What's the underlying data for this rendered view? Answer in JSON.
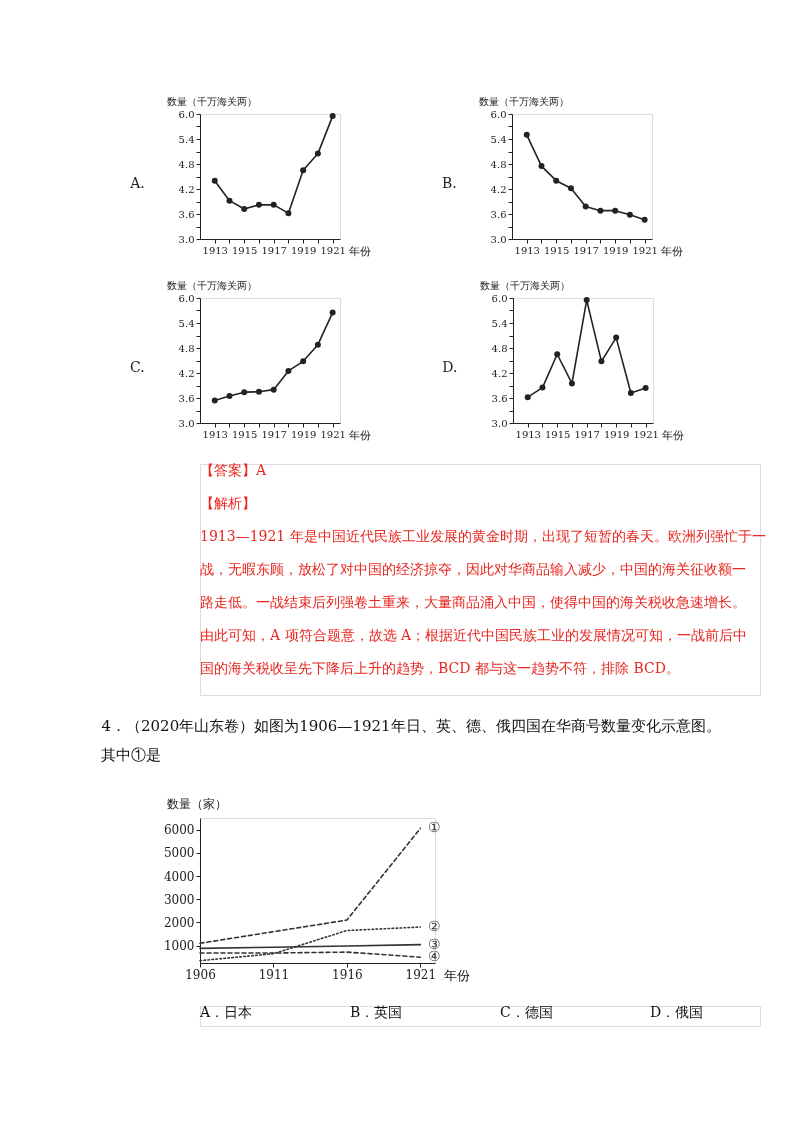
{
  "chart_data": [
    {
      "type": "line",
      "title": "A.",
      "ylabel": "数量（千万海关两）",
      "xlabel": "年份",
      "x": [
        1913,
        1914,
        1915,
        1916,
        1917,
        1918,
        1919,
        1920,
        1921
      ],
      "series": [
        {
          "color": "#222222",
          "values": [
            4.4,
            3.92,
            3.72,
            3.82,
            3.82,
            3.62,
            4.65,
            5.05,
            5.95
          ]
        }
      ],
      "xlim": [
        1912,
        1921.5
      ],
      "xticks": [
        1913,
        {
          "value": 1914,
          "label": null
        },
        1915,
        {
          "value": 1916,
          "label": null
        },
        1917,
        {
          "value": 1918,
          "label": null
        },
        1919,
        {
          "value": 1920,
          "label": null
        },
        1921
      ],
      "ylim": [
        3.0,
        6.0
      ],
      "yticks": [
        {
          "value": 3,
          "label": "3.0"
        },
        {
          "value": 3.3,
          "label": null
        },
        3.6,
        {
          "value": 3.9,
          "label": null
        },
        4.2,
        {
          "value": 4.5,
          "label": null
        },
        4.8,
        {
          "value": 5.1,
          "label": null
        },
        5.4,
        {
          "value": 5.7,
          "label": null
        },
        {
          "value": 6,
          "label": "6.0"
        }
      ],
      "marker": "circle",
      "legend": false,
      "grid": false
    },
    {
      "type": "line",
      "title": "B.",
      "ylabel": "数量（千万海关两）",
      "xlabel": "年份",
      "x": [
        1913,
        1914,
        1915,
        1916,
        1917,
        1918,
        1919,
        1920,
        1921
      ],
      "series": [
        {
          "color": "#222222",
          "values": [
            5.5,
            4.75,
            4.4,
            4.22,
            3.78,
            3.68,
            3.68,
            3.58,
            3.46
          ]
        }
      ],
      "xlim": [
        1912,
        1921.5
      ],
      "xticks": [
        1913,
        {
          "value": 1914,
          "label": null
        },
        1915,
        {
          "value": 1916,
          "label": null
        },
        1917,
        {
          "value": 1918,
          "label": null
        },
        1919,
        {
          "value": 1920,
          "label": null
        },
        1921
      ],
      "ylim": [
        3.0,
        6.0
      ],
      "yticks": [
        {
          "value": 3,
          "label": "3.0"
        },
        {
          "value": 3.3,
          "label": null
        },
        3.6,
        {
          "value": 3.9,
          "label": null
        },
        4.2,
        {
          "value": 4.5,
          "label": null
        },
        4.8,
        {
          "value": 5.1,
          "label": null
        },
        5.4,
        {
          "value": 5.7,
          "label": null
        },
        {
          "value": 6,
          "label": "6.0"
        }
      ],
      "marker": "circle",
      "legend": false,
      "grid": false
    },
    {
      "type": "line",
      "title": "C.",
      "ylabel": "数量（千万海关两）",
      "xlabel": "年份",
      "x": [
        1913,
        1914,
        1915,
        1916,
        1917,
        1918,
        1919,
        1920,
        1921
      ],
      "series": [
        {
          "color": "#222222",
          "values": [
            3.54,
            3.65,
            3.74,
            3.75,
            3.8,
            4.25,
            4.48,
            4.88,
            5.65
          ]
        }
      ],
      "xlim": [
        1912,
        1921.5
      ],
      "xticks": [
        1913,
        {
          "value": 1914,
          "label": null
        },
        1915,
        {
          "value": 1916,
          "label": null
        },
        1917,
        {
          "value": 1918,
          "label": null
        },
        1919,
        {
          "value": 1920,
          "label": null
        },
        1921
      ],
      "ylim": [
        3.0,
        6.0
      ],
      "yticks": [
        {
          "value": 3,
          "label": "3.0"
        },
        {
          "value": 3.3,
          "label": null
        },
        3.6,
        {
          "value": 3.9,
          "label": null
        },
        4.2,
        {
          "value": 4.5,
          "label": null
        },
        4.8,
        {
          "value": 5.1,
          "label": null
        },
        5.4,
        {
          "value": 5.7,
          "label": null
        },
        {
          "value": 6,
          "label": "6.0"
        }
      ],
      "marker": "circle",
      "legend": false,
      "grid": false
    },
    {
      "type": "line",
      "title": "D.",
      "ylabel": "数量（千万海关两）",
      "xlabel": "年份",
      "x": [
        1913,
        1914,
        1915,
        1916,
        1917,
        1918,
        1919,
        1920,
        1921
      ],
      "series": [
        {
          "color": "#222222",
          "values": [
            3.62,
            3.85,
            4.65,
            3.95,
            5.95,
            4.48,
            5.05,
            3.72,
            3.84
          ]
        }
      ],
      "xlim": [
        1912,
        1921.5
      ],
      "xticks": [
        1913,
        {
          "value": 1914,
          "label": null
        },
        1915,
        {
          "value": 1916,
          "label": null
        },
        1917,
        {
          "value": 1918,
          "label": null
        },
        1919,
        {
          "value": 1920,
          "label": null
        },
        1921
      ],
      "ylim": [
        3.0,
        6.0
      ],
      "yticks": [
        {
          "value": 3,
          "label": "3.0"
        },
        {
          "value": 3.3,
          "label": null
        },
        3.6,
        {
          "value": 3.9,
          "label": null
        },
        4.2,
        {
          "value": 4.5,
          "label": null
        },
        4.8,
        {
          "value": 5.1,
          "label": null
        },
        5.4,
        {
          "value": 5.7,
          "label": null
        },
        {
          "value": 6,
          "label": "6.0"
        }
      ],
      "marker": "circle",
      "legend": false,
      "grid": false,
      "annotations": [
        "【答案】A",
        "【解析】",
        "1913—1921 年是中国近代民族工业发展的黄金时期，出现了短暂的春天。欧洲列强忙于一",
        "战，无暇东顾，放松了对中国的经济掠夺，因此对华商品输入减少，中国的海关征收额一",
        "路走低。一战结束后列强卷土重来，大量商品涌入中国，使得中国的海关税收急速增长。",
        "由此可知，A 项符合题意，故选 A；根据近代中国民族工业的发展情况可知，一战前后中",
        "国的海关税收呈先下降后上升的趋势，BCD 都与这一趋势不符，排除 BCD。"
      ]
    },
    {
      "type": "line",
      "title": "4．（2020年山东卷）如图为1906—1921年日、英、德、俄四国在华商号数量变化示意图。",
      "subtitle": "其中①是",
      "ylabel": "数量（家）",
      "xlabel": "年份",
      "x": [
        1906,
        1911,
        1916,
        1921
      ],
      "xlim": [
        1906,
        1922
      ],
      "xticks": [
        1906,
        1911,
        1916,
        1921
      ],
      "ylim": [
        250,
        6500
      ],
      "yticks": [
        1000,
        2000,
        3000,
        4000,
        5000,
        6000
      ],
      "marker": "none",
      "legend": false,
      "grid": false,
      "series": [
        {
          "name": "①",
          "color": "#333333",
          "line_style": "dashed",
          "values": [
            1100,
            1600,
            2100,
            6050
          ]
        },
        {
          "name": "②",
          "color": "#333333",
          "line_style": "dotted",
          "values": [
            350,
            650,
            1650,
            1800
          ]
        },
        {
          "name": "③",
          "color": "#333333",
          "line_style": "solid",
          "values": [
            880,
            930,
            980,
            1040
          ]
        },
        {
          "name": "④",
          "color": "#333333",
          "line_style": "dashed",
          "values": [
            680,
            680,
            720,
            500
          ]
        }
      ],
      "annotations": [
        "A．日本",
        "B．英国",
        "C．德国",
        "D．俄国"
      ]
    }
  ]
}
